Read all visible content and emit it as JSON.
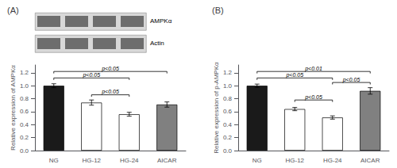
{
  "chart_data": [
    {
      "type": "bar",
      "title": "(A)",
      "categories": [
        "NG",
        "HG-12",
        "HG-24",
        "AICAR"
      ],
      "values": [
        1.0,
        0.74,
        0.56,
        0.71
      ],
      "errors": [
        0.03,
        0.04,
        0.03,
        0.04
      ],
      "colors": [
        "#1a1a1a",
        "#ffffff",
        "#ffffff",
        "#808080"
      ],
      "y_label": "Relative expression of AMPKα",
      "ylim": [
        0,
        1.32
      ],
      "yticks": [
        {
          "value": 0,
          "label": "0.0"
        },
        0.2,
        0.4,
        0.6,
        0.8,
        {
          "value": 1.0,
          "label": "1.0"
        },
        1.2
      ],
      "grid": false,
      "annotations": [
        {
          "from": "NG",
          "to": "HG-24",
          "y": 1.12,
          "label": "p<0.05"
        },
        {
          "from": "NG",
          "to": "AICAR",
          "y": 1.22,
          "label": "p<0.05"
        },
        {
          "from": "HG-12",
          "to": "HG-24",
          "y": 0.86,
          "label": "p<0.05"
        },
        {
          "label": "AMPKα"
        },
        {
          "label": "Actin"
        }
      ]
    },
    {
      "type": "bar",
      "title": "(B)",
      "categories": [
        "NG",
        "HG-12",
        "HG-24",
        "AICAR"
      ],
      "values": [
        1.0,
        0.64,
        0.51,
        0.92
      ],
      "errors": [
        0.025,
        0.025,
        0.025,
        0.05
      ],
      "colors": [
        "#1a1a1a",
        "#ffffff",
        "#ffffff",
        "#808080"
      ],
      "y_label": "Relative expression of p-AMPKα",
      "ylim": [
        0,
        1.32
      ],
      "yticks": [
        {
          "value": 0,
          "label": "0.0"
        },
        0.2,
        0.4,
        0.6,
        0.8,
        {
          "value": 1.0,
          "label": "1.0"
        },
        1.2
      ],
      "grid": false,
      "annotations": [
        {
          "from": "NG",
          "to": "HG-24",
          "y": 1.12,
          "label": "p<0.05"
        },
        {
          "from": "NG",
          "to": "AICAR",
          "y": 1.22,
          "label": "p<0.01"
        },
        {
          "from": "HG-12",
          "to": "HG-24",
          "y": 0.78,
          "label": "p<0.05"
        },
        {
          "from": "HG-24",
          "to": "AICAR",
          "y": 1.05,
          "label": "p<0.05"
        }
      ]
    }
  ]
}
